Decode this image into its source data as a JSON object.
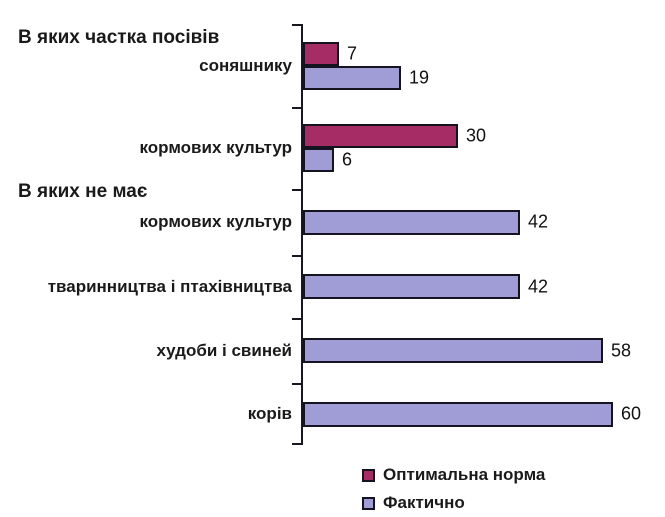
{
  "chart_data": {
    "type": "bar",
    "orientation": "horizontal",
    "title": "",
    "xlabel": "",
    "ylabel": "",
    "xlim": [
      0,
      62
    ],
    "grid": false,
    "legend_position": "bottom",
    "colors": {
      "optimal": "#A62C66",
      "actual": "#A09DD6",
      "bar_border": "#15131F",
      "axis": "#17171F",
      "text": "#1A1A1A"
    },
    "legend": [
      {
        "name": "Оптимальна норма",
        "series": "optimal",
        "color": "#A62C66"
      },
      {
        "name": "Фактично",
        "series": "actual",
        "color": "#A09DD6"
      }
    ],
    "groups": [
      {
        "section_header": "В яких частка посівів",
        "label": "соняшнику",
        "bars": [
          {
            "series": "optimal",
            "value": 7
          },
          {
            "series": "actual",
            "value": 19
          }
        ]
      },
      {
        "section_header": null,
        "label": "кормових культур",
        "bars": [
          {
            "series": "optimal",
            "value": 30
          },
          {
            "series": "actual",
            "value": 6
          }
        ]
      },
      {
        "section_header": "В яких не має",
        "label": "кормових культур",
        "bars": [
          {
            "series": "actual",
            "value": 42
          }
        ]
      },
      {
        "section_header": null,
        "label": "тваринництва і птахівництва",
        "bars": [
          {
            "series": "actual",
            "value": 42
          }
        ]
      },
      {
        "section_header": null,
        "label": "худоби і свиней",
        "bars": [
          {
            "series": "actual",
            "value": 58
          }
        ]
      },
      {
        "section_header": null,
        "label": "корів",
        "bars": [
          {
            "series": "actual",
            "value": 60
          }
        ]
      }
    ]
  }
}
